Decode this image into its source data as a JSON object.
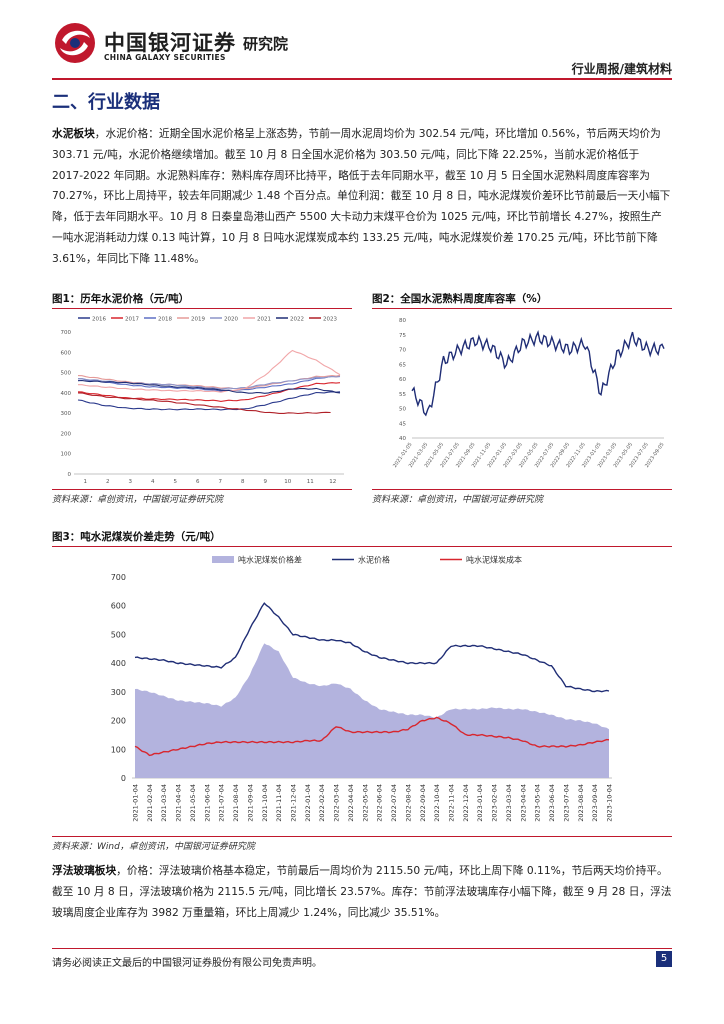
{
  "header": {
    "brand_cn": "中国银河证券",
    "brand_sub": "研究院",
    "brand_en": "CHINA GALAXY SECURITIES",
    "report_type": "行业周报/建筑材料"
  },
  "section_title": "二、行业数据",
  "para1": {
    "label": "水泥板块",
    "body": "，水泥价格：近期全国水泥价格呈上涨态势，节前一周水泥周均价为 302.54 元/吨，环比增加 0.56%，节后两天均价为 303.71 元/吨，水泥价格继续增加。截至 10 月 8 日全国水泥价格为 303.50 元/吨，同比下降 22.25%，当前水泥价格低于 2017-2022 年同期。水泥熟料库存：熟料库存周环比持平，略低于去年同期水平，截至 10 月 5 日全国水泥熟料周度库容率为 70.27%，环比上周持平，较去年同期减少 1.48 个百分点。单位利润：截至 10 月 8 日，吨水泥煤炭价差环比节前最后一天小幅下降，低于去年同期水平。10 月 8 日秦皇岛港山西产 5500 大卡动力末煤平仓价为 1025 元/吨，环比节前增长 4.27%，按照生产一吨水泥消耗动力煤 0.13 吨计算，10 月 8 日吨水泥煤炭成本约 133.25 元/吨，吨水泥煤炭价差 170.25 元/吨，环比节前下降 3.61%，年同比下降 11.48%。"
  },
  "figures": {
    "fig1": {
      "title": "图1：历年水泥价格（元/吨）",
      "source": "资料来源：卓创资讯，中国银河证券研究院",
      "legend": [
        "2016",
        "2017",
        "2018",
        "2019",
        "2020",
        "2021",
        "2022",
        "2023"
      ],
      "yticks": [
        "700",
        "600",
        "500",
        "400",
        "300",
        "200",
        "100",
        "0"
      ],
      "xticks": [
        "1",
        "2",
        "3",
        "4",
        "5",
        "6",
        "7",
        "8",
        "9",
        "10",
        "11",
        "12"
      ]
    },
    "fig2": {
      "title": "图2：全国水泥熟料周度库容率（%）",
      "source": "资料来源：卓创资讯，中国银河证券研究院",
      "yticks": [
        "80",
        "75",
        "70",
        "65",
        "60",
        "55",
        "50",
        "45",
        "40"
      ],
      "xticks": [
        "2021-01-05",
        "2021-03-05",
        "2021-05-05",
        "2021-07-05",
        "2021-09-05",
        "2021-11-05",
        "2022-01-05",
        "2022-03-05",
        "2022-05-05",
        "2022-07-05",
        "2022-09-05",
        "2022-11-05",
        "2023-01-05",
        "2023-03-05",
        "2023-05-05",
        "2023-07-05",
        "2023-09-05"
      ]
    },
    "fig3": {
      "title": "图3：吨水泥煤炭价差走势（元/吨）",
      "source": "资料来源：Wind，卓创资讯，中国银河证券研究院",
      "yticks": [
        "700",
        "600",
        "500",
        "400",
        "300",
        "200",
        "100",
        "0"
      ]
    }
  },
  "chart_data": [
    {
      "type": "line",
      "title": "历年水泥价格（元/吨）",
      "x": [
        "1",
        "2",
        "3",
        "4",
        "5",
        "6",
        "7",
        "8",
        "9",
        "10",
        "11",
        "12"
      ],
      "ylim": [
        0,
        700
      ],
      "series": [
        {
          "name": "2016",
          "color": "#2b3a8c",
          "values": [
            365,
            340,
            325,
            320,
            318,
            320,
            318,
            320,
            345,
            375,
            400,
            405
          ]
        },
        {
          "name": "2017",
          "color": "#d8262e",
          "values": [
            405,
            390,
            375,
            370,
            368,
            365,
            360,
            365,
            390,
            420,
            445,
            450
          ]
        },
        {
          "name": "2018",
          "color": "#5d6fc4",
          "values": [
            470,
            455,
            440,
            430,
            425,
            420,
            410,
            415,
            430,
            445,
            470,
            485
          ]
        },
        {
          "name": "2019",
          "color": "#e59a98",
          "values": [
            485,
            470,
            455,
            445,
            440,
            435,
            425,
            420,
            440,
            460,
            480,
            485
          ]
        },
        {
          "name": "2020",
          "color": "#8c94c8",
          "values": [
            470,
            460,
            450,
            445,
            440,
            430,
            420,
            425,
            445,
            460,
            475,
            480
          ]
        },
        {
          "name": "2021",
          "color": "#f1a6a8",
          "values": [
            440,
            430,
            420,
            415,
            410,
            410,
            405,
            420,
            500,
            610,
            560,
            490
          ]
        },
        {
          "name": "2022",
          "color": "#1f2d75",
          "values": [
            460,
            455,
            450,
            440,
            430,
            425,
            415,
            400,
            400,
            420,
            420,
            400
          ]
        },
        {
          "name": "2023",
          "color": "#b02028",
          "values": [
            400,
            380,
            370,
            360,
            345,
            330,
            315,
            300,
            300,
            303,
            null,
            null
          ]
        }
      ]
    },
    {
      "type": "line",
      "title": "全国水泥熟料周度库容率（%）",
      "ylim": [
        40,
        80
      ],
      "x": [
        "2021-01-05",
        "2021-03-05",
        "2021-05-05",
        "2021-07-05",
        "2021-09-05",
        "2021-11-05",
        "2022-01-05",
        "2022-03-05",
        "2022-05-05",
        "2022-07-05",
        "2022-09-05",
        "2022-11-05",
        "2023-01-05",
        "2023-03-05",
        "2023-05-05",
        "2023-07-05",
        "2023-09-05"
      ],
      "series": [
        {
          "name": "",
          "color": "#1f2d75",
          "values": [
            56,
            48,
            66,
            70,
            73,
            71,
            65,
            72,
            74,
            72,
            70,
            72,
            55,
            68,
            74,
            70,
            70.27
          ]
        }
      ]
    },
    {
      "type": "area",
      "title": "吨水泥煤炭价差走势（元/吨）",
      "ylim": [
        0,
        700
      ],
      "x": [
        "2021-01-04",
        "2021-02-04",
        "2021-03-04",
        "2021-04-04",
        "2021-05-04",
        "2021-06-04",
        "2021-07-04",
        "2021-08-04",
        "2021-09-04",
        "2021-10-04",
        "2021-11-04",
        "2021-12-04",
        "2022-01-04",
        "2022-02-04",
        "2022-03-04",
        "2022-04-04",
        "2022-05-04",
        "2022-06-04",
        "2022-07-04",
        "2022-08-04",
        "2022-09-04",
        "2022-10-04",
        "2022-11-04",
        "2022-12-04",
        "2023-01-04",
        "2023-02-04",
        "2023-03-04",
        "2023-04-04",
        "2023-05-04",
        "2023-06-04",
        "2023-07-04",
        "2023-08-04",
        "2023-09-04",
        "2023-10-04"
      ],
      "series": [
        {
          "name": "吨水泥煤炭价格差",
          "color": "#b3b3de",
          "values": [
            310,
            300,
            285,
            270,
            265,
            260,
            250,
            280,
            360,
            470,
            440,
            350,
            330,
            320,
            330,
            310,
            270,
            240,
            230,
            220,
            220,
            210,
            240,
            240,
            240,
            245,
            240,
            240,
            230,
            220,
            205,
            200,
            190,
            170
          ]
        },
        {
          "name": "水泥价格",
          "color": "#1f2d75",
          "values": [
            420,
            415,
            410,
            400,
            395,
            390,
            385,
            420,
            520,
            610,
            560,
            500,
            490,
            480,
            480,
            470,
            440,
            420,
            410,
            400,
            400,
            400,
            460,
            460,
            460,
            450,
            440,
            430,
            410,
            390,
            320,
            310,
            302,
            303
          ]
        },
        {
          "name": "吨水泥煤炭成本",
          "color": "#d8262e",
          "values": [
            110,
            80,
            90,
            100,
            110,
            120,
            125,
            125,
            125,
            125,
            125,
            125,
            130,
            130,
            180,
            160,
            160,
            160,
            160,
            170,
            200,
            210,
            190,
            150,
            150,
            145,
            140,
            130,
            110,
            110,
            110,
            115,
            125,
            133
          ]
        }
      ]
    }
  ],
  "para2": {
    "label": "浮法玻璃板块",
    "body": "，价格：浮法玻璃价格基本稳定，节前最后一周均价为 2115.50 元/吨，环比上周下降 0.11%，节后两天均价持平。截至 10 月 8 日，浮法玻璃价格为 2115.5 元/吨，同比增长 23.57%。库存：节前浮法玻璃库存小幅下降，截至 9 月 28 日，浮法玻璃周度企业库存为 3982 万重量箱，环比上周减少 1.24%，同比减少 35.51%。"
  },
  "footer": {
    "disclaimer": "请务必阅读正文最后的中国银河证券股份有限公司免责声明。",
    "page": "5"
  },
  "colors": {
    "brand_red": "#c0182d",
    "brand_blue": "#1a2f7a"
  }
}
